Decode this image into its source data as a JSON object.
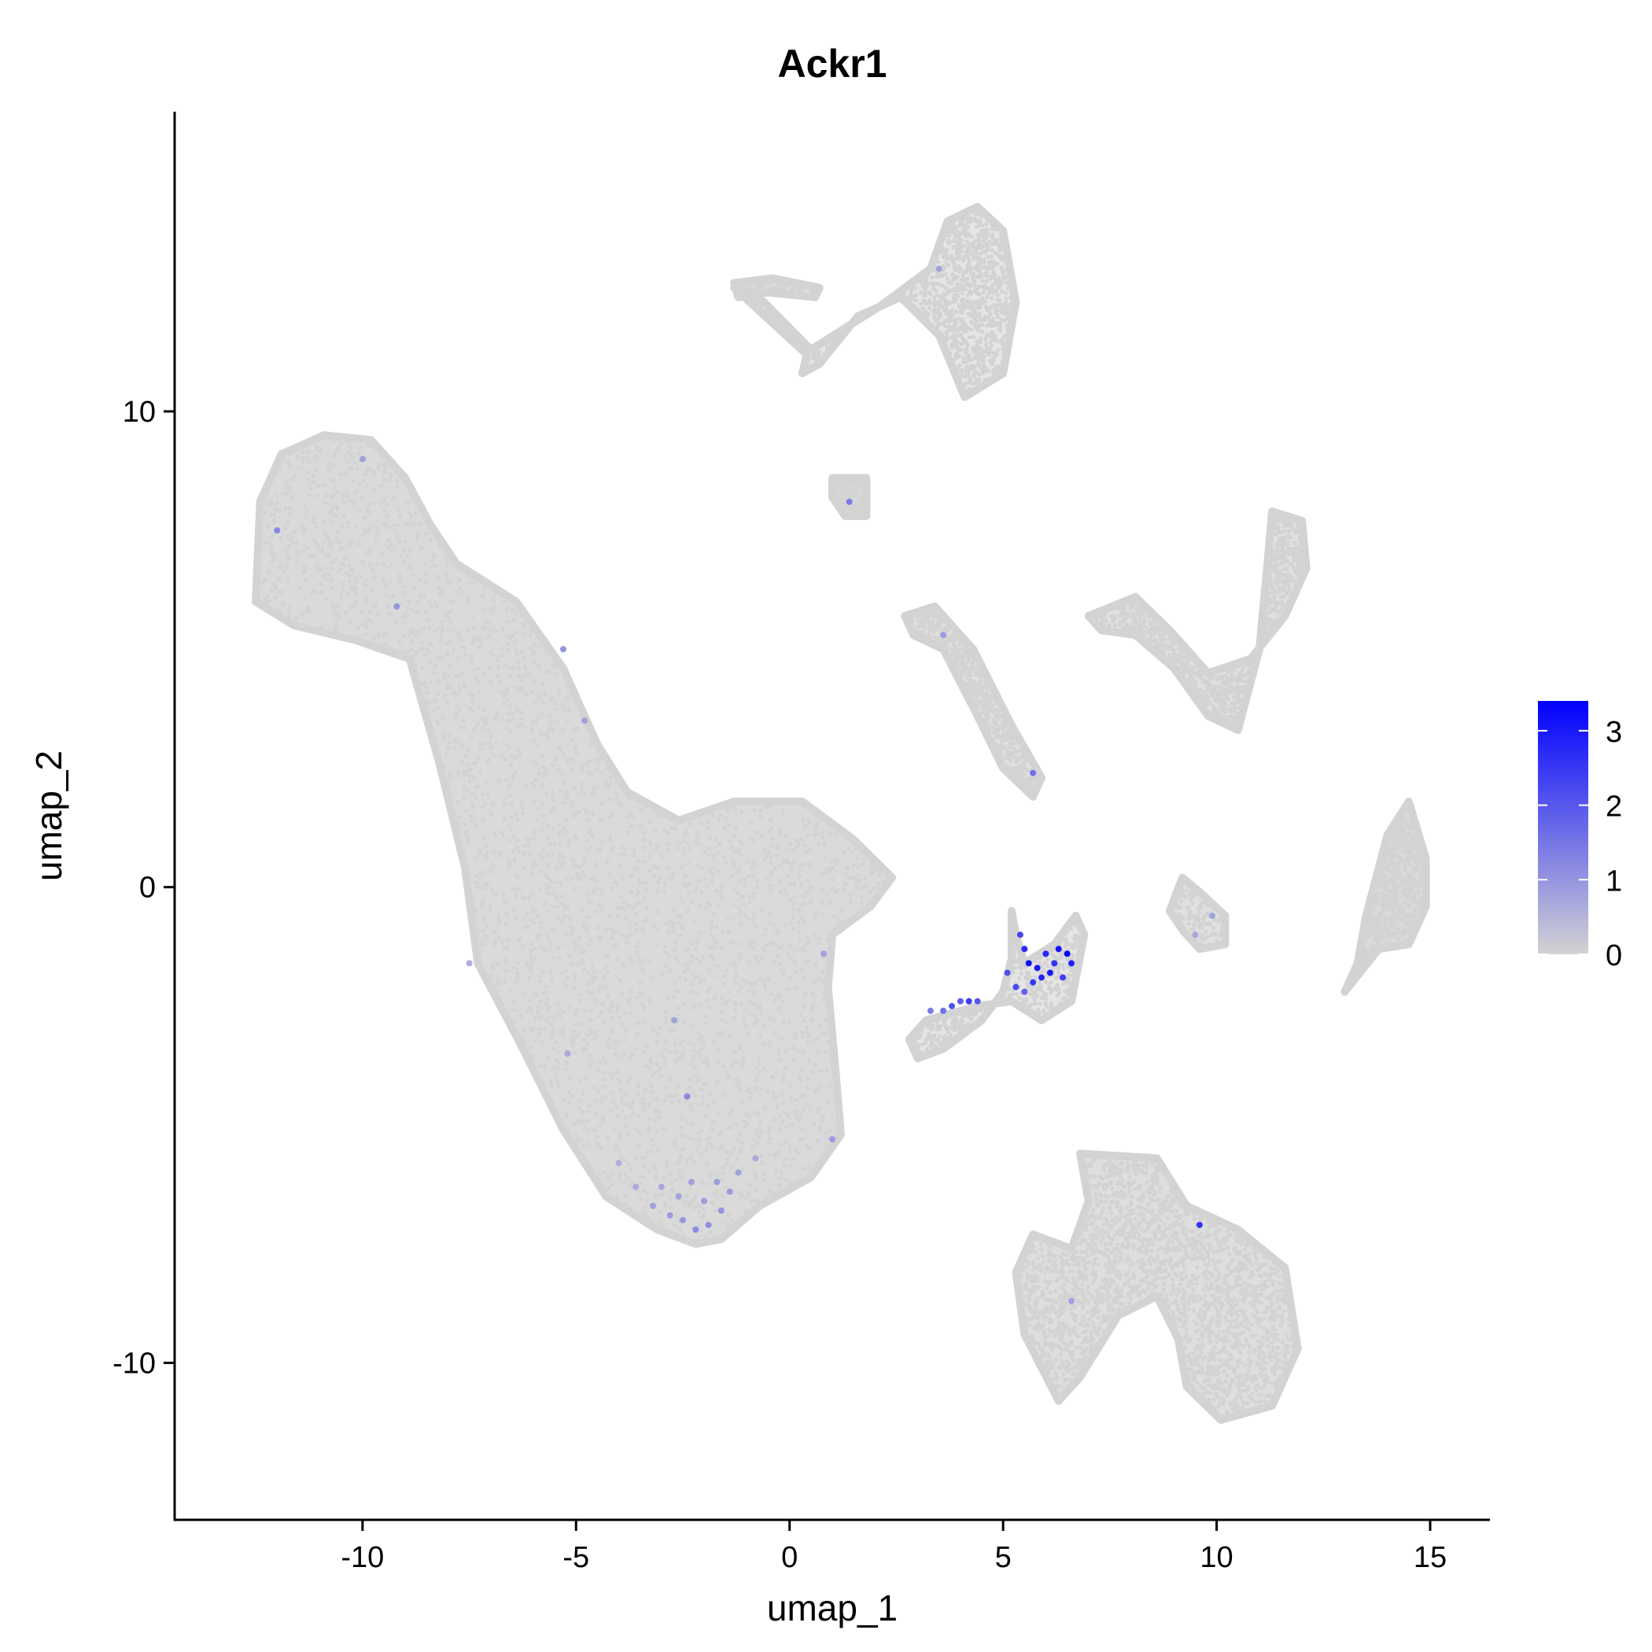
{
  "chart_data": {
    "type": "scatter",
    "title": "Ackr1",
    "xlabel": "umap_1",
    "ylabel": "umap_2",
    "xlim": [
      -14.4,
      16.4
    ],
    "ylim": [
      -13.3,
      16.3
    ],
    "x_ticks": [
      -10,
      -5,
      0,
      5,
      10,
      15
    ],
    "x_tick_labels": [
      "-10",
      "-5",
      "0",
      "5",
      "10",
      "15"
    ],
    "y_ticks": [
      -10,
      0,
      10
    ],
    "y_tick_labels": [
      "-10",
      "0",
      "10"
    ],
    "grid": false,
    "legend_position": "right",
    "colorbar": {
      "min": 0,
      "max": 3.4,
      "ticks": [
        0,
        1,
        2,
        3
      ],
      "tick_labels": [
        "0",
        "1",
        "2",
        "3"
      ],
      "low_color": "#d3d3d3",
      "high_color": "#0000ff"
    },
    "point_color_zero": "#d3d3d3",
    "clusters": [
      {
        "name": "large-main",
        "outline": [
          [
            -12.4,
            8.1
          ],
          [
            -11.9,
            9.1
          ],
          [
            -10.9,
            9.5
          ],
          [
            -9.8,
            9.4
          ],
          [
            -9.0,
            8.6
          ],
          [
            -8.4,
            7.6
          ],
          [
            -7.8,
            6.8
          ],
          [
            -6.4,
            6.0
          ],
          [
            -5.3,
            4.6
          ],
          [
            -4.5,
            3.0
          ],
          [
            -3.8,
            2.0
          ],
          [
            -2.6,
            1.4
          ],
          [
            -1.3,
            1.8
          ],
          [
            0.3,
            1.8
          ],
          [
            1.5,
            1.0
          ],
          [
            2.4,
            0.2
          ],
          [
            1.9,
            -0.4
          ],
          [
            1.0,
            -1.0
          ],
          [
            0.9,
            -2.1
          ],
          [
            1.1,
            -4.1
          ],
          [
            1.2,
            -5.2
          ],
          [
            0.5,
            -6.1
          ],
          [
            -0.7,
            -6.7
          ],
          [
            -1.6,
            -7.4
          ],
          [
            -2.2,
            -7.5
          ],
          [
            -3.1,
            -7.2
          ],
          [
            -4.3,
            -6.5
          ],
          [
            -5.3,
            -5.1
          ],
          [
            -6.3,
            -3.3
          ],
          [
            -7.3,
            -1.6
          ],
          [
            -7.6,
            0.4
          ],
          [
            -8.2,
            2.6
          ],
          [
            -8.9,
            4.8
          ],
          [
            -10.2,
            5.2
          ],
          [
            -11.6,
            5.5
          ],
          [
            -12.5,
            6.0
          ]
        ],
        "density": 0.85,
        "count": 5200
      },
      {
        "name": "top-fan",
        "outline": [
          [
            -1.3,
            12.6
          ],
          [
            -0.6,
            12.3
          ],
          [
            0.5,
            11.3
          ],
          [
            2.1,
            12.2
          ],
          [
            3.3,
            13.0
          ],
          [
            3.7,
            14.0
          ],
          [
            4.4,
            14.3
          ],
          [
            5.0,
            13.8
          ],
          [
            5.3,
            12.3
          ],
          [
            5.0,
            10.8
          ],
          [
            4.1,
            10.3
          ],
          [
            3.5,
            11.6
          ],
          [
            2.6,
            12.4
          ],
          [
            1.6,
            12.0
          ],
          [
            0.7,
            11.0
          ],
          [
            0.3,
            10.8
          ],
          [
            0.4,
            11.2
          ]
        ],
        "density": 0.6,
        "count": 1200
      },
      {
        "name": "top-strip",
        "outline": [
          [
            -1.3,
            12.7
          ],
          [
            -0.4,
            12.8
          ],
          [
            0.7,
            12.6
          ],
          [
            0.6,
            12.4
          ],
          [
            -0.5,
            12.5
          ],
          [
            -1.2,
            12.4
          ]
        ],
        "density": 0.8,
        "count": 120
      },
      {
        "name": "small-blob",
        "outline": [
          [
            1.0,
            8.6
          ],
          [
            1.8,
            8.6
          ],
          [
            1.8,
            7.8
          ],
          [
            1.3,
            7.8
          ],
          [
            1.0,
            8.2
          ]
        ],
        "density": 0.9,
        "count": 90
      },
      {
        "name": "diagonal-arm",
        "outline": [
          [
            2.7,
            5.7
          ],
          [
            3.4,
            5.9
          ],
          [
            4.3,
            5.0
          ],
          [
            5.2,
            3.4
          ],
          [
            5.9,
            2.3
          ],
          [
            5.7,
            1.9
          ],
          [
            5.0,
            2.5
          ],
          [
            4.4,
            3.6
          ],
          [
            3.6,
            5.0
          ],
          [
            2.9,
            5.3
          ]
        ],
        "density": 0.7,
        "count": 700
      },
      {
        "name": "right-upper",
        "outline": [
          [
            7.0,
            5.7
          ],
          [
            8.1,
            6.1
          ],
          [
            8.9,
            5.4
          ],
          [
            9.8,
            4.5
          ],
          [
            10.8,
            4.8
          ],
          [
            11.6,
            5.7
          ],
          [
            12.1,
            6.7
          ],
          [
            12.0,
            7.7
          ],
          [
            11.3,
            7.9
          ],
          [
            11.2,
            6.9
          ],
          [
            11.0,
            5.0
          ],
          [
            10.5,
            3.3
          ],
          [
            9.8,
            3.6
          ],
          [
            9.0,
            4.6
          ],
          [
            8.1,
            5.3
          ],
          [
            7.3,
            5.4
          ]
        ],
        "density": 0.7,
        "count": 1200
      },
      {
        "name": "center-stem",
        "outline": [
          [
            5.2,
            -0.5
          ],
          [
            5.3,
            -1.0
          ],
          [
            5.5,
            -1.6
          ],
          [
            6.2,
            -1.2
          ],
          [
            6.7,
            -0.6
          ],
          [
            6.9,
            -1.0
          ],
          [
            6.6,
            -2.4
          ],
          [
            5.9,
            -2.8
          ],
          [
            5.2,
            -2.4
          ],
          [
            4.4,
            -2.5
          ],
          [
            3.2,
            -2.8
          ],
          [
            2.8,
            -3.2
          ],
          [
            3.0,
            -3.6
          ],
          [
            3.6,
            -3.4
          ],
          [
            4.5,
            -2.8
          ],
          [
            5.0,
            -2.2
          ],
          [
            5.2,
            -1.5
          ]
        ],
        "density": 0.6,
        "count": 500
      },
      {
        "name": "small-right",
        "outline": [
          [
            8.9,
            -0.5
          ],
          [
            9.2,
            0.2
          ],
          [
            9.6,
            -0.1
          ],
          [
            10.2,
            -0.6
          ],
          [
            10.2,
            -1.2
          ],
          [
            9.6,
            -1.3
          ],
          [
            9.2,
            -0.9
          ]
        ],
        "density": 0.7,
        "count": 130
      },
      {
        "name": "far-right",
        "outline": [
          [
            13.0,
            -2.2
          ],
          [
            13.8,
            -1.3
          ],
          [
            14.5,
            -1.2
          ],
          [
            14.9,
            -0.4
          ],
          [
            14.9,
            0.6
          ],
          [
            14.5,
            1.8
          ],
          [
            14.0,
            1.1
          ],
          [
            13.5,
            -0.6
          ],
          [
            13.3,
            -1.6
          ]
        ],
        "density": 0.85,
        "count": 700
      },
      {
        "name": "bottom-right",
        "outline": [
          [
            6.8,
            -5.6
          ],
          [
            8.6,
            -5.7
          ],
          [
            9.3,
            -6.7
          ],
          [
            10.5,
            -7.2
          ],
          [
            11.6,
            -8.0
          ],
          [
            11.9,
            -9.7
          ],
          [
            11.3,
            -10.9
          ],
          [
            10.1,
            -11.2
          ],
          [
            9.3,
            -10.5
          ],
          [
            9.1,
            -9.5
          ],
          [
            8.6,
            -8.6
          ],
          [
            7.7,
            -9.0
          ],
          [
            6.8,
            -10.3
          ],
          [
            6.3,
            -10.8
          ],
          [
            5.5,
            -9.4
          ],
          [
            5.3,
            -8.1
          ],
          [
            5.7,
            -7.3
          ],
          [
            6.6,
            -7.6
          ],
          [
            7.0,
            -6.6
          ]
        ],
        "density": 0.75,
        "count": 2500
      }
    ],
    "expressing_points": [
      {
        "x": 5.6,
        "y": -1.6,
        "value": 3.2
      },
      {
        "x": 5.8,
        "y": -1.7,
        "value": 3.0
      },
      {
        "x": 6.0,
        "y": -1.4,
        "value": 2.8
      },
      {
        "x": 6.3,
        "y": -1.3,
        "value": 3.1
      },
      {
        "x": 6.5,
        "y": -1.4,
        "value": 3.4
      },
      {
        "x": 6.6,
        "y": -1.6,
        "value": 2.9
      },
      {
        "x": 6.2,
        "y": -1.6,
        "value": 2.6
      },
      {
        "x": 5.5,
        "y": -1.3,
        "value": 2.7
      },
      {
        "x": 5.4,
        "y": -1.0,
        "value": 2.3
      },
      {
        "x": 5.7,
        "y": -2.0,
        "value": 2.5
      },
      {
        "x": 6.4,
        "y": -1.9,
        "value": 2.4
      },
      {
        "x": 5.3,
        "y": -2.1,
        "value": 2.2
      },
      {
        "x": 5.1,
        "y": -1.8,
        "value": 2.1
      },
      {
        "x": 4.4,
        "y": -2.4,
        "value": 2.0
      },
      {
        "x": 4.0,
        "y": -2.4,
        "value": 1.9
      },
      {
        "x": 3.6,
        "y": -2.6,
        "value": 1.6
      },
      {
        "x": 3.3,
        "y": -2.6,
        "value": 1.4
      },
      {
        "x": 5.9,
        "y": -1.9,
        "value": 2.8
      },
      {
        "x": 6.1,
        "y": -1.8,
        "value": 3.0
      },
      {
        "x": 5.5,
        "y": -2.2,
        "value": 1.8
      },
      {
        "x": -2.2,
        "y": -7.2,
        "value": 1.2
      },
      {
        "x": -2.5,
        "y": -7.0,
        "value": 1.0
      },
      {
        "x": -1.9,
        "y": -7.1,
        "value": 1.1
      },
      {
        "x": -2.8,
        "y": -6.9,
        "value": 0.9
      },
      {
        "x": -1.6,
        "y": -6.8,
        "value": 1.0
      },
      {
        "x": -1.4,
        "y": -6.4,
        "value": 0.9
      },
      {
        "x": -3.2,
        "y": -6.7,
        "value": 0.8
      },
      {
        "x": -2.0,
        "y": -6.6,
        "value": 0.9
      },
      {
        "x": -2.6,
        "y": -6.5,
        "value": 0.8
      },
      {
        "x": -1.2,
        "y": -6.0,
        "value": 0.8
      },
      {
        "x": -3.6,
        "y": -6.3,
        "value": 0.7
      },
      {
        "x": -0.8,
        "y": -5.7,
        "value": 0.7
      },
      {
        "x": -2.3,
        "y": -6.2,
        "value": 0.8
      },
      {
        "x": -1.7,
        "y": -6.2,
        "value": 0.9
      },
      {
        "x": -3.0,
        "y": -6.3,
        "value": 0.7
      },
      {
        "x": -4.0,
        "y": -5.8,
        "value": 0.6
      },
      {
        "x": -2.4,
        "y": -4.4,
        "value": 1.2
      },
      {
        "x": -2.7,
        "y": -2.8,
        "value": 0.8
      },
      {
        "x": -5.2,
        "y": -3.5,
        "value": 0.7
      },
      {
        "x": -7.5,
        "y": -1.6,
        "value": 0.6
      },
      {
        "x": -5.3,
        "y": 5.0,
        "value": 1.0
      },
      {
        "x": -4.8,
        "y": 3.5,
        "value": 0.8
      },
      {
        "x": -9.2,
        "y": 5.9,
        "value": 1.0
      },
      {
        "x": -12.0,
        "y": 7.5,
        "value": 1.2
      },
      {
        "x": -10.0,
        "y": 9.0,
        "value": 0.8
      },
      {
        "x": 3.5,
        "y": 13.0,
        "value": 0.8
      },
      {
        "x": 1.4,
        "y": 8.1,
        "value": 1.4
      },
      {
        "x": 5.7,
        "y": 2.4,
        "value": 1.6
      },
      {
        "x": 3.6,
        "y": 5.3,
        "value": 0.9
      },
      {
        "x": 9.9,
        "y": -0.6,
        "value": 0.8
      },
      {
        "x": 9.5,
        "y": -1.0,
        "value": 0.7
      },
      {
        "x": 9.6,
        "y": -7.1,
        "value": 2.6
      },
      {
        "x": 6.6,
        "y": -8.7,
        "value": 0.8
      },
      {
        "x": 1.0,
        "y": -5.3,
        "value": 0.9
      },
      {
        "x": 0.8,
        "y": -1.4,
        "value": 0.8
      },
      {
        "x": 4.2,
        "y": -2.4,
        "value": 2.4
      },
      {
        "x": 3.8,
        "y": -2.5,
        "value": 2.1
      }
    ]
  }
}
